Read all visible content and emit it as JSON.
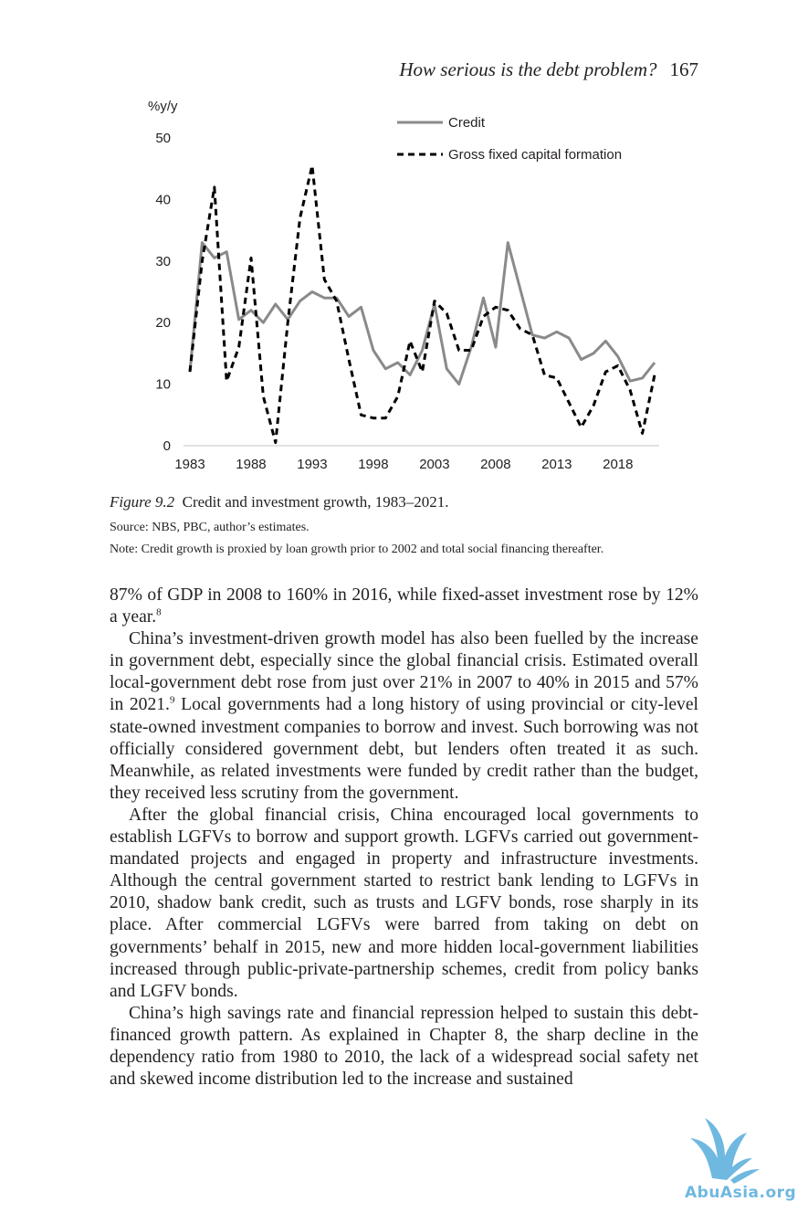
{
  "header": {
    "title": "How serious is the debt problem?",
    "page_number": "167"
  },
  "chart_data": {
    "type": "line",
    "ylabel": "%y/y",
    "ylim": [
      0,
      50
    ],
    "yticks": [
      "0",
      "10",
      "20",
      "30",
      "40",
      "50"
    ],
    "xlim": [
      1983,
      2021
    ],
    "xticks": [
      "1983",
      "1988",
      "1993",
      "1998",
      "2003",
      "2008",
      "2013",
      "2018"
    ],
    "legend_position": "top-right",
    "grid": false,
    "series": [
      {
        "name": "Credit",
        "style": "solid",
        "color": "#8a8a8a",
        "x": [
          1983,
          1984,
          1985,
          1986,
          1987,
          1988,
          1989,
          1990,
          1991,
          1992,
          1993,
          1994,
          1995,
          1996,
          1997,
          1998,
          1999,
          2000,
          2001,
          2002,
          2003,
          2004,
          2005,
          2006,
          2007,
          2008,
          2009,
          2010,
          2011,
          2012,
          2013,
          2014,
          2015,
          2016,
          2017,
          2018,
          2019,
          2020,
          2021
        ],
        "values": [
          12,
          33,
          30.5,
          31.5,
          20.5,
          22,
          20,
          23,
          20.5,
          23.5,
          25,
          24,
          24,
          21,
          22.5,
          15.5,
          12.5,
          13.5,
          11.5,
          15.5,
          23,
          12.5,
          10,
          16,
          24,
          16,
          33,
          25.5,
          18,
          17.5,
          18.5,
          17.5,
          14,
          15,
          17,
          14.5,
          10.5,
          11,
          13.5
        ]
      },
      {
        "name": "Gross fixed capital formation",
        "style": "dashed",
        "color": "#000000",
        "x": [
          1983,
          1984,
          1985,
          1986,
          1987,
          1988,
          1989,
          1990,
          1991,
          1992,
          1993,
          1994,
          1995,
          1996,
          1997,
          1998,
          1999,
          2000,
          2001,
          2002,
          2003,
          2004,
          2005,
          2006,
          2007,
          2008,
          2009,
          2010,
          2011,
          2012,
          2013,
          2014,
          2015,
          2016,
          2017,
          2018,
          2019,
          2020,
          2021
        ],
        "values": [
          12,
          30,
          42,
          10.5,
          16,
          30.5,
          8,
          0.5,
          20,
          37,
          45.5,
          27,
          23.5,
          14,
          5,
          4.5,
          4.5,
          8,
          17,
          12,
          23.5,
          21.5,
          15.5,
          15.5,
          21,
          22.5,
          22,
          19,
          18,
          11.5,
          11,
          7,
          3,
          6.5,
          12,
          13,
          9,
          2,
          11.5
        ]
      }
    ]
  },
  "figure": {
    "label": "Figure 9.2",
    "caption": "Credit and investment growth, 1983–2021.",
    "source": "Source: NBS, PBC, author’s estimates.",
    "note": "Note: Credit growth is proxied by loan growth prior to 2002 and total social financing thereafter."
  },
  "body": {
    "p1": "87% of GDP in 2008 to 160% in 2016, while fixed-asset investment rose by 12% a year.",
    "p1_note": "8",
    "p2a": "China’s investment-driven growth model has also been fuelled by the increase in government debt, especially since the global financial crisis. Estimated overall local-government debt rose from just over 21% in 2007 to 40% in 2015 and 57% in 2021.",
    "p2_note": "9",
    "p2b": " Local governments had a long history of using provincial or city-level state-owned investment companies to borrow and invest. Such borrowing was not officially considered government debt, but lenders often treated it as such. Meanwhile, as related investments were funded by credit rather than the budget, they received less scrutiny from the government.",
    "p3": "After the global financial crisis, China encouraged local governments to establish LGFVs to borrow and support growth. LGFVs carried out government-mandated projects and engaged in property and infrastructure investments. Although the central government started to restrict bank lending to LGFVs in 2010, shadow bank credit, such as trusts and LGFV bonds, rose sharply in its place. After commercial LGFVs were barred from taking on debt on governments’ behalf in 2015, new and more hidden local-government liabilities increased through public-private-partnership schemes, credit from policy banks and LGFV bonds.",
    "p4": "China’s high savings rate and financial repression helped to sustain this debt-financed growth pattern. As explained in Chapter 8, the sharp decline in the dependency ratio from 1980 to 2010, the lack of a widespread social safety net and skewed income distribution led to the increase and sustained"
  },
  "watermark": {
    "text": "AbuAsia.org",
    "color": "#6fb8e0"
  }
}
